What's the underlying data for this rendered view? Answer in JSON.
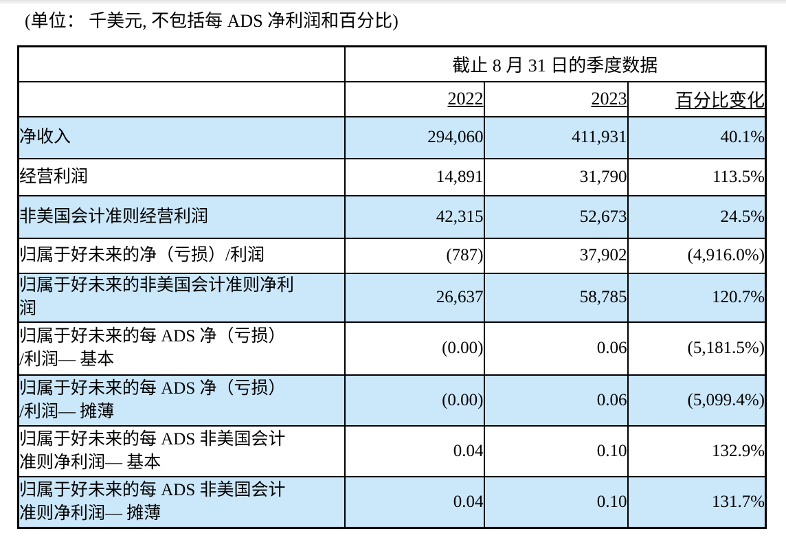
{
  "caption": "(单位： 千美元, 不包括每 ADS 净利润和百分比)",
  "table": {
    "span_header": "截止 8 月 31 日的季度数据",
    "columns": {
      "y2022": "2022",
      "y2023": "2023",
      "pct": "百分比变化"
    },
    "rows": [
      {
        "label": "净收入",
        "y2022": "294,060",
        "y2023": "411,931",
        "pct": "40.1%"
      },
      {
        "label": "经营利润",
        "y2022": "14,891",
        "y2023": "31,790",
        "pct": "113.5%"
      },
      {
        "label": "非美国会计准则经营利润",
        "y2022": "42,315",
        "y2023": "52,673",
        "pct": "24.5%"
      },
      {
        "label": "归属于好未来的净（亏损）/利润",
        "y2022": "(787)",
        "y2023": "37,902",
        "pct": "(4,916.0%)"
      },
      {
        "label": "归属于好未来的非美国会计准则净利\n润",
        "y2022": "26,637",
        "y2023": "58,785",
        "pct": "120.7%"
      },
      {
        "label": "归属于好未来的每 ADS 净（亏损）\n/利润— 基本",
        "y2022": "(0.00)",
        "y2023": "0.06",
        "pct": "(5,181.5%)"
      },
      {
        "label": "归属于好未来的每 ADS 净（亏损）\n/利润— 摊薄",
        "y2022": "(0.00)",
        "y2023": "0.06",
        "pct": "(5,099.4%)"
      },
      {
        "label": "归属于好未来的每 ADS 非美国会计\n准则净利润— 基本",
        "y2022": "0.04",
        "y2023": "0.10",
        "pct": "132.9%"
      },
      {
        "label": "归属于好未来的每 ADS 非美国会计\n准则净利润— 摊薄",
        "y2022": "0.04",
        "y2023": "0.10",
        "pct": "131.7%"
      }
    ]
  },
  "colors": {
    "row_highlight": "#cbe7fa",
    "border": "#000000",
    "text": "#000000"
  }
}
